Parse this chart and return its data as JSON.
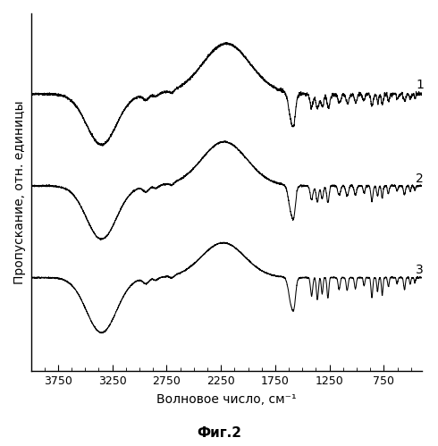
{
  "xlabel": "Волновое число, см⁻¹",
  "ylabel": "Пропускание, отн. единицы",
  "fig_label": "Фиг.2",
  "xticks": [
    3750,
    3250,
    2750,
    2250,
    1750,
    1250,
    750
  ],
  "offsets": [
    2.0,
    1.0,
    0.0
  ],
  "labels": [
    "1",
    "2",
    "3"
  ],
  "background_color": "#ffffff",
  "line_color": "#000000",
  "line_width": 0.75
}
